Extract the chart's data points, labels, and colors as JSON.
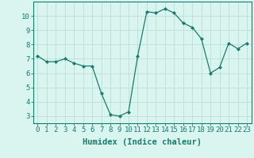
{
  "x": [
    0,
    1,
    2,
    3,
    4,
    5,
    6,
    7,
    8,
    9,
    10,
    11,
    12,
    13,
    14,
    15,
    16,
    17,
    18,
    19,
    20,
    21,
    22,
    23
  ],
  "y": [
    7.2,
    6.8,
    6.8,
    7.0,
    6.7,
    6.5,
    6.5,
    4.6,
    3.1,
    3.0,
    3.3,
    7.2,
    10.3,
    10.2,
    10.5,
    10.2,
    9.5,
    9.2,
    8.4,
    6.0,
    6.4,
    8.1,
    7.7,
    8.1
  ],
  "line_color": "#1a7a6e",
  "marker": "D",
  "marker_size": 2.0,
  "bg_color": "#d9f5f0",
  "grid_color": "#c0ddd8",
  "xlabel": "Humidex (Indice chaleur)",
  "ylim": [
    2.5,
    11.0
  ],
  "xlim": [
    -0.5,
    23.5
  ],
  "yticks": [
    3,
    4,
    5,
    6,
    7,
    8,
    9,
    10
  ],
  "xticks": [
    0,
    1,
    2,
    3,
    4,
    5,
    6,
    7,
    8,
    9,
    10,
    11,
    12,
    13,
    14,
    15,
    16,
    17,
    18,
    19,
    20,
    21,
    22,
    23
  ],
  "xtick_labels": [
    "0",
    "1",
    "2",
    "3",
    "4",
    "5",
    "6",
    "7",
    "8",
    "9",
    "10",
    "11",
    "12",
    "13",
    "14",
    "15",
    "16",
    "17",
    "18",
    "19",
    "20",
    "21",
    "22",
    "23"
  ],
  "axis_color": "#1a7a6e",
  "tick_color": "#1a7a6e",
  "label_fontsize": 7.5,
  "tick_fontsize": 6.5
}
